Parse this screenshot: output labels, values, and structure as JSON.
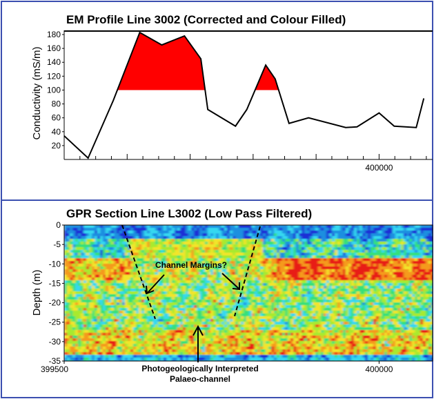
{
  "colors": {
    "frame": "#3a4fb0",
    "fill_above_threshold": "#ff0000",
    "line": "#000000",
    "gpr_palette": [
      "#1a2fd6",
      "#1a8fe0",
      "#34d8f0",
      "#34e07a",
      "#a8ea2e",
      "#f2e52a",
      "#f59a1e",
      "#e81e12"
    ]
  },
  "chart_data": [
    {
      "type": "area",
      "title": "EM Profile Line 3002 (Corrected and Colour Filled)",
      "ylabel": "Conductivity (mS/m)",
      "xlabel": "",
      "ylim": [
        0,
        185
      ],
      "yticks": [
        "20",
        "40",
        "60",
        "80",
        "100",
        "120",
        "140",
        "160",
        "180"
      ],
      "xlim": [
        399500,
        400085
      ],
      "xticks": [
        "400000"
      ],
      "threshold": 100,
      "fill_above_threshold": true,
      "grid": false,
      "series": [
        {
          "x": [
            399500,
            399538,
            399578,
            399620,
            399655,
            399691,
            399717,
            399728,
            399772,
            399790,
            399820,
            399835,
            399857,
            399888,
            399947,
            399965,
            400000,
            400024,
            400059,
            400071
          ],
          "y": [
            34,
            2,
            85,
            183,
            165,
            178,
            145,
            72,
            48,
            72,
            136,
            116,
            52,
            60,
            46,
            47,
            67,
            48,
            46,
            88
          ]
        }
      ]
    },
    {
      "type": "heatmap",
      "title": "GPR Section Line L3002 (Low Pass Filtered)",
      "ylabel": "Depth (m)",
      "xlabel": "",
      "ylim": [
        -35,
        0
      ],
      "yticks": [
        "0",
        "-5",
        "-10",
        "-15",
        "-20",
        "-25",
        "-30",
        "-35"
      ],
      "xlim": [
        399500,
        400085
      ],
      "xticks": [
        "399500",
        "400000"
      ],
      "annotations": [
        "Channel Margins?",
        "Photogeologically Interpreted",
        "Palaeo-channel"
      ]
    }
  ]
}
